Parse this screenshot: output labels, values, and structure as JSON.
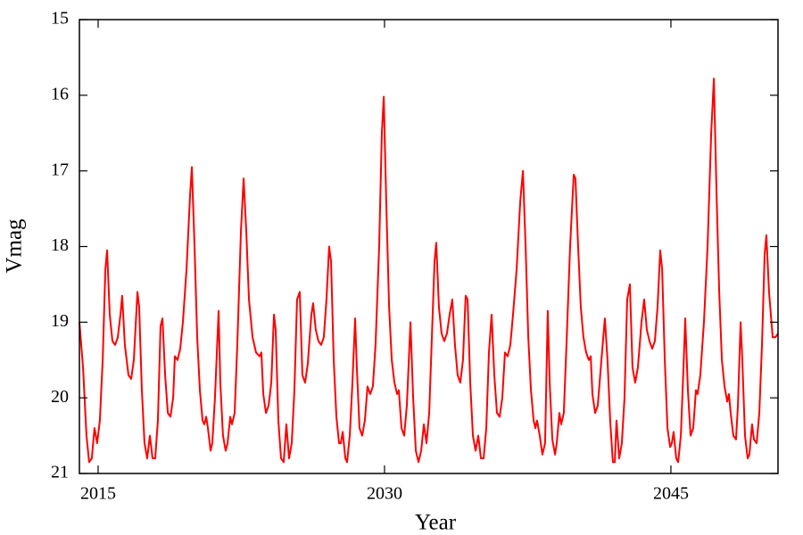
{
  "chart_data": {
    "type": "line",
    "x_label": "Year",
    "y_label": "Vmag",
    "xlim": [
      2014.02,
      2050.61
    ],
    "xticks": [
      2015,
      2030,
      2045
    ],
    "ylim": [
      21,
      15
    ],
    "yticks": [
      15,
      16,
      17,
      18,
      19,
      20,
      21
    ],
    "color": "#ff0000",
    "x": [
      2014.02,
      2014.21,
      2014.39,
      2014.53,
      2014.67,
      2014.81,
      2014.95,
      2015.09,
      2015.24,
      2015.38,
      2015.47,
      2015.61,
      2015.75,
      2015.89,
      2016.03,
      2016.17,
      2016.26,
      2016.4,
      2016.59,
      2016.73,
      2016.87,
      2017.06,
      2017.15,
      2017.29,
      2017.43,
      2017.57,
      2017.71,
      2017.85,
      2017.99,
      2018.13,
      2018.27,
      2018.37,
      2018.51,
      2018.65,
      2018.79,
      2018.93,
      2019.02,
      2019.16,
      2019.3,
      2019.44,
      2019.63,
      2019.82,
      2019.91,
      2020.05,
      2020.19,
      2020.33,
      2020.47,
      2020.56,
      2020.66,
      2020.75,
      2020.89,
      2020.98,
      2021.12,
      2021.31,
      2021.4,
      2021.54,
      2021.68,
      2021.78,
      2021.92,
      2022.01,
      2022.15,
      2022.29,
      2022.48,
      2022.62,
      2022.76,
      2022.9,
      2023.09,
      2023.27,
      2023.46,
      2023.55,
      2023.65,
      2023.79,
      2023.93,
      2024.07,
      2024.21,
      2024.3,
      2024.44,
      2024.58,
      2024.72,
      2024.86,
      2025.0,
      2025.14,
      2025.28,
      2025.42,
      2025.56,
      2025.7,
      2025.84,
      2025.98,
      2026.17,
      2026.26,
      2026.4,
      2026.54,
      2026.68,
      2026.82,
      2026.96,
      2027.1,
      2027.2,
      2027.34,
      2027.48,
      2027.62,
      2027.71,
      2027.81,
      2027.95,
      2028.04,
      2028.18,
      2028.32,
      2028.46,
      2028.55,
      2028.69,
      2028.83,
      2028.97,
      2029.11,
      2029.25,
      2029.39,
      2029.53,
      2029.72,
      2029.86,
      2029.96,
      2030.1,
      2030.24,
      2030.38,
      2030.52,
      2030.66,
      2030.75,
      2030.89,
      2031.03,
      2031.17,
      2031.36,
      2031.5,
      2031.64,
      2031.78,
      2031.92,
      2032.06,
      2032.2,
      2032.34,
      2032.48,
      2032.62,
      2032.71,
      2032.85,
      2032.99,
      2033.13,
      2033.27,
      2033.41,
      2033.55,
      2033.69,
      2033.83,
      2033.97,
      2034.11,
      2034.25,
      2034.35,
      2034.49,
      2034.63,
      2034.77,
      2034.91,
      2035.05,
      2035.19,
      2035.33,
      2035.47,
      2035.61,
      2035.75,
      2035.89,
      2036.03,
      2036.17,
      2036.31,
      2036.45,
      2036.59,
      2036.73,
      2036.92,
      2037.11,
      2037.25,
      2037.39,
      2037.53,
      2037.67,
      2037.81,
      2037.9,
      2037.99,
      2038.13,
      2038.27,
      2038.41,
      2038.55,
      2038.65,
      2038.79,
      2038.93,
      2039.02,
      2039.16,
      2039.25,
      2039.39,
      2039.53,
      2039.72,
      2039.91,
      2040.0,
      2040.14,
      2040.28,
      2040.42,
      2040.56,
      2040.7,
      2040.8,
      2040.89,
      2041.03,
      2041.17,
      2041.36,
      2041.54,
      2041.68,
      2041.82,
      2041.96,
      2042.06,
      2042.15,
      2042.29,
      2042.43,
      2042.57,
      2042.71,
      2042.85,
      2042.99,
      2043.13,
      2043.27,
      2043.46,
      2043.6,
      2043.74,
      2043.88,
      2044.02,
      2044.16,
      2044.3,
      2044.44,
      2044.54,
      2044.68,
      2044.82,
      2044.96,
      2045.05,
      2045.14,
      2045.28,
      2045.38,
      2045.52,
      2045.66,
      2045.75,
      2045.89,
      2046.03,
      2046.17,
      2046.31,
      2046.4,
      2046.54,
      2046.73,
      2046.92,
      2047.11,
      2047.25,
      2047.39,
      2047.53,
      2047.67,
      2047.81,
      2047.95,
      2048.04,
      2048.13,
      2048.27,
      2048.41,
      2048.51,
      2048.65,
      2048.74,
      2048.88,
      2049.02,
      2049.11,
      2049.25,
      2049.35,
      2049.49,
      2049.63,
      2049.77,
      2049.91,
      2050.0,
      2050.14,
      2050.33,
      2050.47,
      2050.61
    ],
    "values": [
      19.0,
      19.6,
      20.5,
      20.85,
      20.8,
      20.4,
      20.6,
      20.3,
      19.5,
      18.3,
      18.05,
      18.9,
      19.25,
      19.3,
      19.2,
      18.9,
      18.65,
      19.3,
      19.7,
      19.75,
      19.5,
      18.6,
      18.8,
      19.9,
      20.6,
      20.8,
      20.5,
      20.8,
      20.8,
      20.3,
      19.05,
      18.95,
      19.7,
      20.2,
      20.25,
      20.0,
      19.45,
      19.5,
      19.35,
      19.0,
      18.3,
      17.3,
      16.95,
      18.0,
      19.2,
      19.9,
      20.3,
      20.35,
      20.25,
      20.4,
      20.7,
      20.6,
      20.0,
      18.85,
      19.8,
      20.5,
      20.7,
      20.6,
      20.25,
      20.35,
      20.2,
      19.3,
      17.8,
      17.1,
      17.8,
      18.7,
      19.2,
      19.4,
      19.45,
      19.4,
      19.95,
      20.2,
      20.1,
      19.8,
      18.9,
      19.1,
      20.3,
      20.8,
      20.85,
      20.35,
      20.8,
      20.6,
      19.9,
      18.7,
      18.6,
      19.7,
      19.8,
      19.55,
      18.9,
      18.75,
      19.1,
      19.25,
      19.3,
      19.2,
      18.7,
      18.0,
      18.2,
      19.5,
      20.25,
      20.6,
      20.6,
      20.45,
      20.8,
      20.85,
      20.5,
      19.8,
      18.95,
      19.6,
      20.4,
      20.5,
      20.3,
      19.85,
      19.95,
      19.85,
      19.3,
      18.0,
      16.5,
      16.02,
      17.5,
      18.8,
      19.5,
      19.8,
      19.95,
      19.9,
      20.4,
      20.5,
      20.1,
      19.0,
      20.0,
      20.7,
      20.85,
      20.7,
      20.35,
      20.6,
      20.2,
      19.2,
      18.2,
      17.95,
      18.8,
      19.15,
      19.25,
      19.15,
      18.9,
      18.7,
      19.3,
      19.7,
      19.8,
      19.5,
      18.65,
      18.7,
      19.8,
      20.5,
      20.7,
      20.5,
      20.8,
      20.8,
      20.4,
      19.4,
      18.9,
      19.7,
      20.2,
      20.25,
      20.0,
      19.4,
      19.45,
      19.3,
      18.9,
      18.3,
      17.4,
      17.0,
      18.0,
      19.2,
      19.9,
      20.3,
      20.4,
      20.3,
      20.5,
      20.75,
      20.6,
      18.85,
      19.8,
      20.55,
      20.75,
      20.6,
      20.2,
      20.35,
      20.2,
      19.3,
      18.0,
      17.05,
      17.1,
      18.0,
      18.8,
      19.2,
      19.4,
      19.5,
      19.45,
      19.95,
      20.2,
      20.1,
      19.5,
      18.95,
      19.5,
      20.3,
      20.85,
      20.85,
      20.3,
      20.8,
      20.6,
      20.0,
      18.7,
      18.5,
      19.6,
      19.8,
      19.6,
      19.0,
      18.7,
      19.1,
      19.25,
      19.35,
      19.25,
      18.8,
      18.05,
      18.3,
      19.5,
      20.4,
      20.65,
      20.6,
      20.45,
      20.8,
      20.85,
      20.5,
      19.6,
      18.95,
      19.9,
      20.5,
      20.4,
      19.9,
      19.95,
      19.7,
      19.0,
      18.0,
      16.5,
      15.78,
      17.3,
      18.6,
      19.5,
      19.85,
      20.05,
      19.95,
      20.2,
      20.5,
      20.55,
      20.1,
      19.0,
      19.5,
      20.5,
      20.8,
      20.75,
      20.35,
      20.55,
      20.6,
      20.2,
      19.3,
      18.1,
      17.85,
      18.6,
      19.2,
      19.2,
      19.15
    ]
  }
}
